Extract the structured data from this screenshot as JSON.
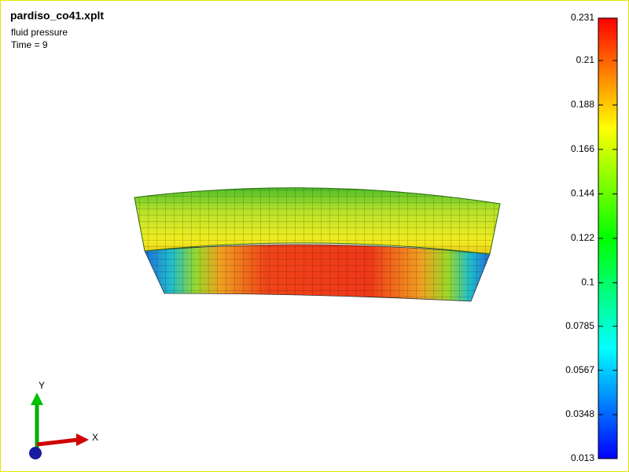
{
  "header": {
    "title": "pardiso_co41.xplt",
    "subtitle": "fluid pressure",
    "time": "Time = 9"
  },
  "colorbar": {
    "range": [
      0.013,
      0.231
    ],
    "ticks": [
      0.231,
      0.21,
      0.188,
      0.166,
      0.144,
      0.122,
      0.1,
      0.0785,
      0.0567,
      0.0348,
      0.013
    ]
  },
  "triad": {
    "y_label": "Y",
    "x_label": "X"
  }
}
